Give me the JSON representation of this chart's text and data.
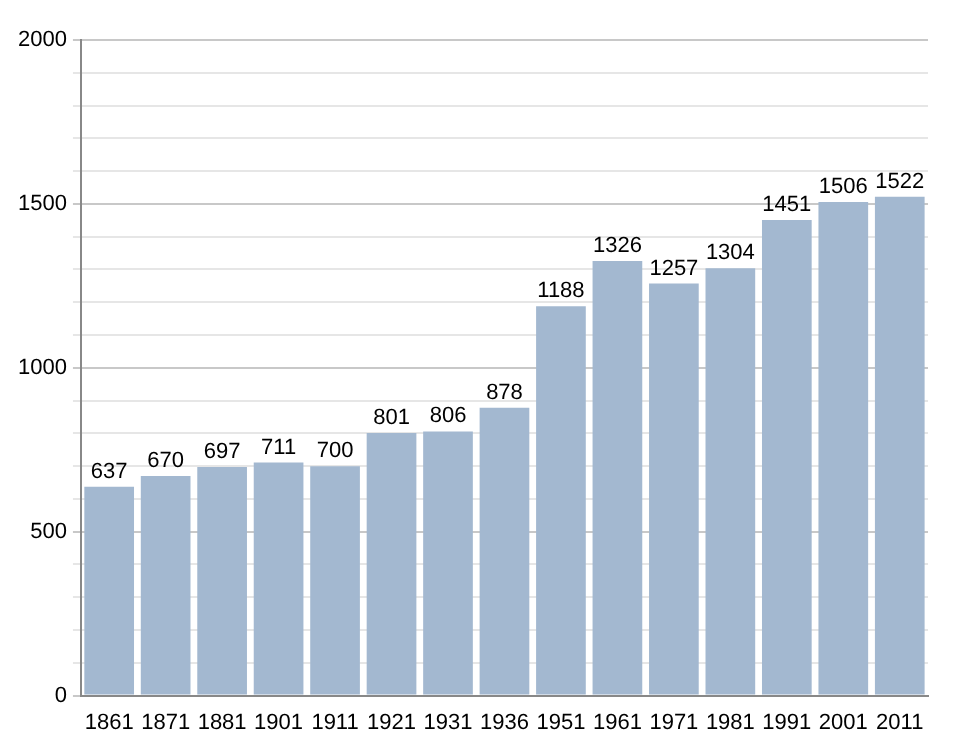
{
  "chart_data": {
    "type": "bar",
    "categories": [
      "1861",
      "1871",
      "1881",
      "1901",
      "1911",
      "1921",
      "1931",
      "1936",
      "1951",
      "1961",
      "1971",
      "1981",
      "1991",
      "2001",
      "2011"
    ],
    "values": [
      637,
      670,
      697,
      711,
      700,
      801,
      806,
      878,
      1188,
      1326,
      1257,
      1304,
      1451,
      1506,
      1522
    ],
    "color": "#a3b8d0",
    "ylim": [
      0,
      2000
    ],
    "yticks": [
      0,
      {
        "value": 100,
        "label": null
      },
      {
        "value": 200,
        "label": null
      },
      {
        "value": 300,
        "label": null
      },
      {
        "value": 400,
        "label": null
      },
      500,
      {
        "value": 600,
        "label": null
      },
      {
        "value": 700,
        "label": null
      },
      {
        "value": 800,
        "label": null
      },
      {
        "value": 900,
        "label": null
      },
      1000,
      {
        "value": 1100,
        "label": null
      },
      {
        "value": 1200,
        "label": null
      },
      {
        "value": 1300,
        "label": null
      },
      {
        "value": 1400,
        "label": null
      },
      1500,
      {
        "value": 1600,
        "label": null
      },
      {
        "value": 1700,
        "label": null
      },
      {
        "value": 1800,
        "label": null
      },
      {
        "value": 1900,
        "label": null
      },
      2000
    ],
    "grid": "y",
    "data_labels": true,
    "legend": false
  }
}
